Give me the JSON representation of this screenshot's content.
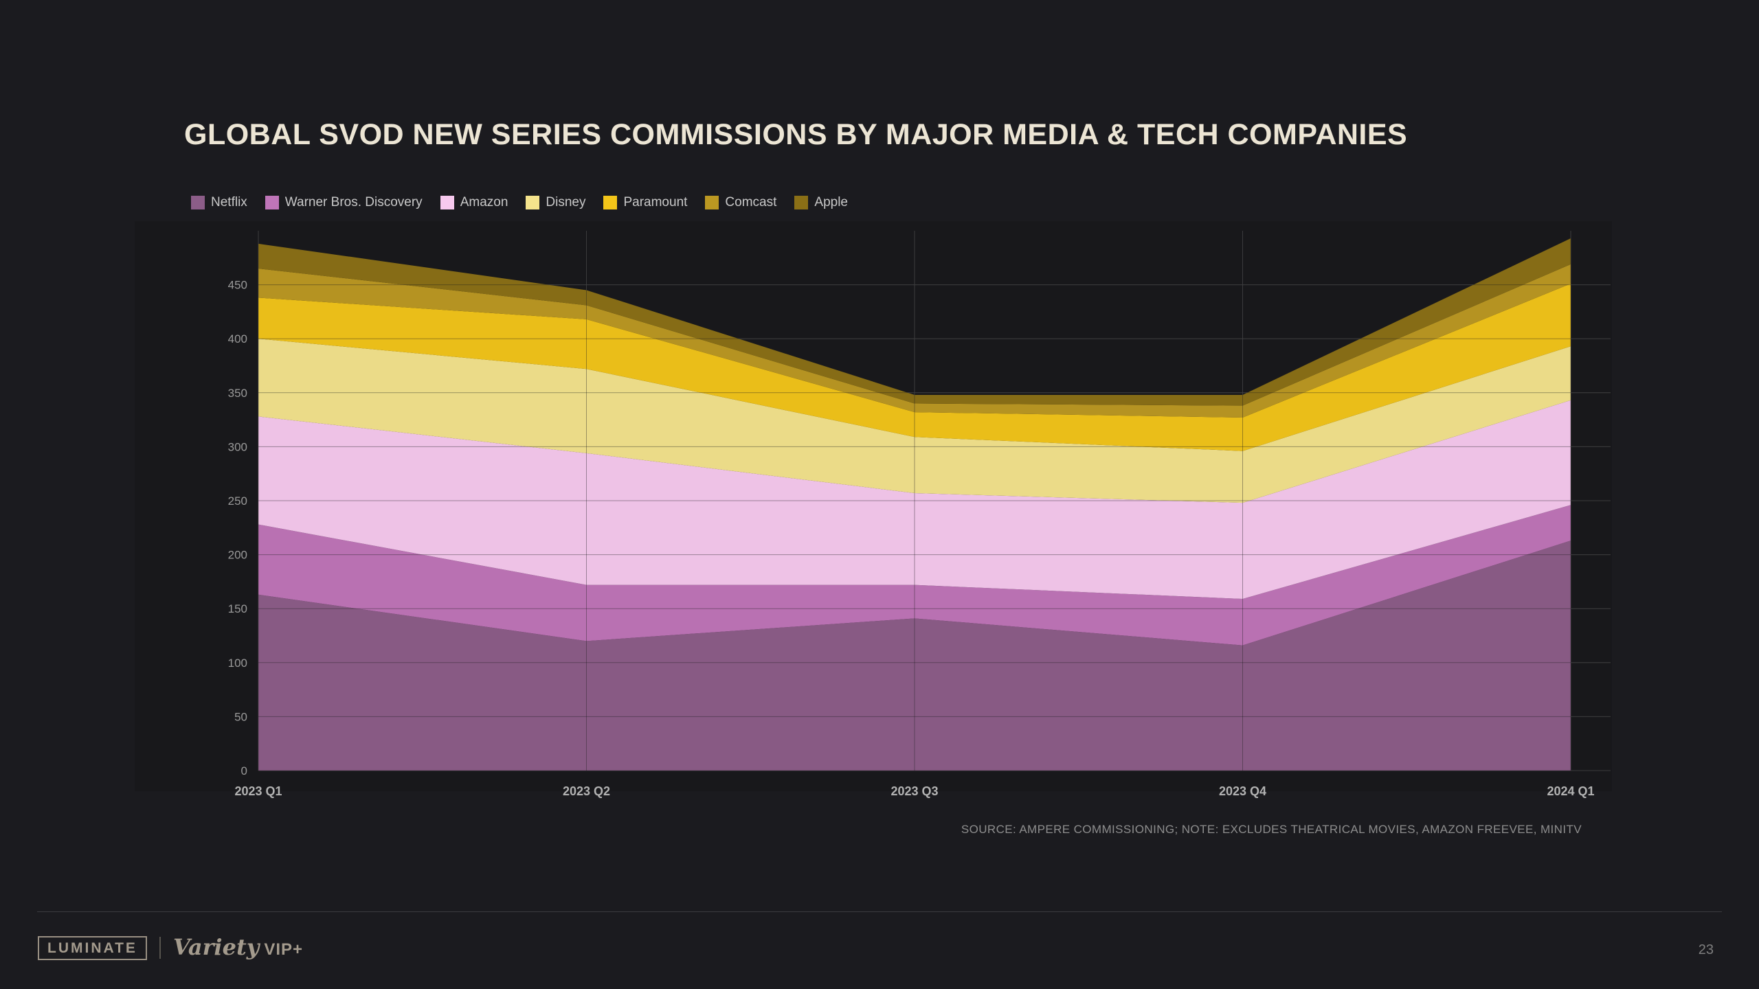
{
  "slide": {
    "title": "GLOBAL SVOD NEW SERIES COMMISSIONS BY MAJOR MEDIA & TECH COMPANIES",
    "source_note": "SOURCE: AMPERE COMMISSIONING; NOTE: EXCLUDES THEATRICAL MOVIES, AMAZON FREEVEE, MINITV",
    "page_number": "23",
    "footer": {
      "luminate": "LUMINATE",
      "variety": "Variety",
      "vip": "VIP+"
    }
  },
  "chart_data": {
    "type": "area",
    "stacked": true,
    "title": "Global SVOD new series commissions by major media & tech companies",
    "xlabel": "",
    "ylabel": "",
    "categories": [
      "2023 Q1",
      "2023 Q2",
      "2023 Q3",
      "2023 Q4",
      "2024 Q1"
    ],
    "series": [
      {
        "name": "Netflix",
        "color": "#8c5d88",
        "values": [
          163,
          120,
          141,
          116,
          213
        ]
      },
      {
        "name": "Warner Bros. Discovery",
        "color": "#bf75b8",
        "values": [
          65,
          52,
          31,
          43,
          33
        ]
      },
      {
        "name": "Amazon",
        "color": "#f7c9ee",
        "values": [
          100,
          122,
          85,
          89,
          97
        ]
      },
      {
        "name": "Disney",
        "color": "#f4e38c",
        "values": [
          72,
          78,
          52,
          48,
          50
        ]
      },
      {
        "name": "Paramount",
        "color": "#f3c519",
        "values": [
          38,
          46,
          23,
          31,
          58
        ]
      },
      {
        "name": "Comcast",
        "color": "#bb9822",
        "values": [
          27,
          13,
          8,
          11,
          18
        ]
      },
      {
        "name": "Apple",
        "color": "#8a6f16",
        "values": [
          23,
          14,
          8,
          10,
          24
        ]
      }
    ],
    "stack_totals": [
      488,
      445,
      348,
      348,
      493
    ],
    "ylim": [
      0,
      500
    ],
    "yticks": [
      0,
      50,
      100,
      150,
      200,
      250,
      300,
      350,
      400,
      450
    ],
    "grid": true,
    "legend_position": "top-left",
    "background_color": "#1b1b1f",
    "title_color": "#ece5d4"
  }
}
